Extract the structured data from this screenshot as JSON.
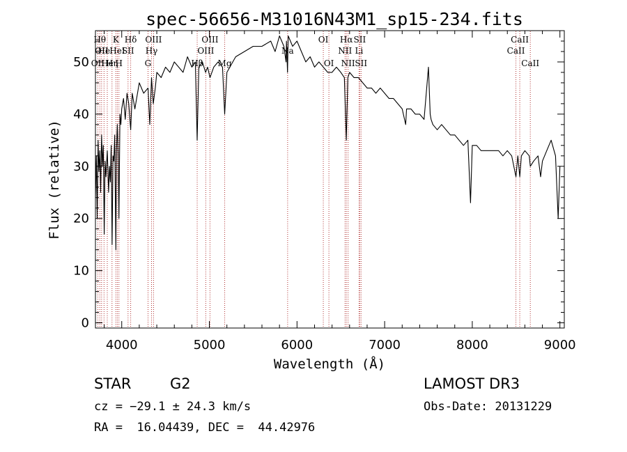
{
  "chart_data": {
    "type": "line",
    "title": "spec-56656-M31016N43M1_sp15-234.fits",
    "xlabel": "Wavelength (Å)",
    "ylabel": "Flux (relative)",
    "xlim": [
      3700,
      9050
    ],
    "ylim": [
      -1,
      56
    ],
    "xticks": [
      4000,
      5000,
      6000,
      7000,
      8000,
      9000
    ],
    "yticks": [
      0,
      10,
      20,
      30,
      40,
      50
    ],
    "series": [
      {
        "name": "flux",
        "x": [
          3700,
          3710,
          3720,
          3730,
          3740,
          3750,
          3760,
          3770,
          3780,
          3790,
          3800,
          3810,
          3820,
          3835,
          3850,
          3860,
          3870,
          3880,
          3890,
          3900,
          3910,
          3920,
          3933,
          3940,
          3950,
          3960,
          3968,
          3980,
          3990,
          4000,
          4020,
          4040,
          4060,
          4080,
          4102,
          4120,
          4150,
          4200,
          4250,
          4300,
          4320,
          4340,
          4360,
          4383,
          4400,
          4450,
          4500,
          4550,
          4600,
          4650,
          4700,
          4750,
          4800,
          4840,
          4861,
          4880,
          4920,
          4957,
          4980,
          5007,
          5050,
          5100,
          5150,
          5175,
          5200,
          5300,
          5400,
          5500,
          5600,
          5700,
          5750,
          5800,
          5850,
          5875,
          5880,
          5892,
          5900,
          5950,
          6000,
          6050,
          6100,
          6150,
          6200,
          6250,
          6300,
          6350,
          6400,
          6450,
          6500,
          6540,
          6563,
          6580,
          6600,
          6650,
          6700,
          6750,
          6800,
          6850,
          6900,
          6950,
          7000,
          7050,
          7100,
          7150,
          7200,
          7240,
          7250,
          7300,
          7350,
          7400,
          7450,
          7500,
          7520,
          7530,
          7550,
          7600,
          7650,
          7700,
          7750,
          7800,
          7850,
          7900,
          7950,
          7980,
          8000,
          8050,
          8100,
          8150,
          8200,
          8250,
          8300,
          8350,
          8400,
          8450,
          8498,
          8520,
          8542,
          8560,
          8600,
          8650,
          8662,
          8700,
          8750,
          8780,
          8800,
          8850,
          8900,
          8950,
          8980,
          9000
        ],
        "y": [
          24,
          32,
          20,
          35,
          29,
          33,
          25,
          36,
          30,
          34,
          17,
          31,
          28,
          33,
          25,
          30,
          27,
          34,
          15,
          32,
          31,
          36,
          14,
          33,
          38,
          32,
          20,
          40,
          38,
          41,
          43,
          39,
          44,
          42,
          37,
          44,
          41,
          46,
          44,
          45,
          38,
          47,
          42,
          45,
          48,
          47,
          49,
          48,
          50,
          49,
          48,
          51,
          49,
          50,
          35,
          49,
          50,
          48,
          49,
          47,
          49,
          50,
          49,
          40,
          48,
          51,
          52,
          53,
          53,
          54,
          52,
          55,
          53,
          50,
          54,
          48,
          55,
          53,
          54,
          52,
          50,
          51,
          49,
          50,
          49,
          48,
          48,
          49,
          48,
          47,
          35,
          47,
          48,
          47,
          47,
          46,
          45,
          45,
          44,
          45,
          44,
          43,
          43,
          42,
          41,
          38,
          41,
          41,
          40,
          40,
          39,
          49,
          40,
          39,
          38,
          37,
          38,
          37,
          36,
          36,
          35,
          34,
          35,
          23,
          34,
          34,
          33,
          33,
          33,
          33,
          33,
          32,
          33,
          32,
          28,
          32,
          28,
          32,
          33,
          32,
          30,
          31,
          32,
          28,
          31,
          33,
          35,
          32,
          20,
          30
        ]
      }
    ],
    "lines": [
      {
        "wavelength": 3727,
        "label": "OII",
        "row": 3
      },
      {
        "wavelength": 3750,
        "label": "Hθ",
        "row": 1
      },
      {
        "wavelength": 3770,
        "label": "OII",
        "row": 2
      },
      {
        "wavelength": 3798,
        "label": "He",
        "row": 2
      },
      {
        "wavelength": 3835,
        "label": "He",
        "row": 3
      },
      {
        "wavelength": 3889,
        "label": "Hη",
        "row": 3
      },
      {
        "wavelength": 3933,
        "label": "K",
        "row": 1
      },
      {
        "wavelength": 3950,
        "label": "HeI",
        "row": 2
      },
      {
        "wavelength": 3968,
        "label": "H",
        "row": 3
      },
      {
        "wavelength": 4072,
        "label": "SII",
        "row": 2
      },
      {
        "wavelength": 4102,
        "label": "Hδ",
        "row": 1
      },
      {
        "wavelength": 4300,
        "label": "G",
        "row": 3
      },
      {
        "wavelength": 4340,
        "label": "Hγ",
        "row": 2
      },
      {
        "wavelength": 4363,
        "label": "OIII",
        "row": 1
      },
      {
        "wavelength": 4861,
        "label": "Hβ",
        "row": 3
      },
      {
        "wavelength": 4959,
        "label": "OIII",
        "row": 2
      },
      {
        "wavelength": 5007,
        "label": "OIII",
        "row": 1
      },
      {
        "wavelength": 5175,
        "label": "Mg",
        "row": 3
      },
      {
        "wavelength": 5893,
        "label": "Na",
        "row": 2
      },
      {
        "wavelength": 6300,
        "label": "OI",
        "row": 1
      },
      {
        "wavelength": 6364,
        "label": "OI",
        "row": 3
      },
      {
        "wavelength": 6548,
        "label": "NII",
        "row": 2
      },
      {
        "wavelength": 6563,
        "label": "Hα",
        "row": 1
      },
      {
        "wavelength": 6583,
        "label": "NII",
        "row": 3
      },
      {
        "wavelength": 6708,
        "label": "Li",
        "row": 2
      },
      {
        "wavelength": 6716,
        "label": "SII",
        "row": 1
      },
      {
        "wavelength": 6731,
        "label": "SII",
        "row": 3
      },
      {
        "wavelength": 8498,
        "label": "CaII",
        "row": 2
      },
      {
        "wavelength": 8542,
        "label": "CaII",
        "row": 1
      },
      {
        "wavelength": 8662,
        "label": "CaII",
        "row": 3
      }
    ]
  },
  "info": {
    "class": "STAR",
    "subclass": "G2",
    "survey": "LAMOST DR3",
    "redshift": "cz = −29.1 ± 24.3 km/s",
    "obs_date": "Obs-Date: 20131229",
    "coords": "RA =  16.04439, DEC =  44.42976"
  },
  "colors": {
    "line_marker": "#b03030",
    "spectrum": "#000000"
  }
}
